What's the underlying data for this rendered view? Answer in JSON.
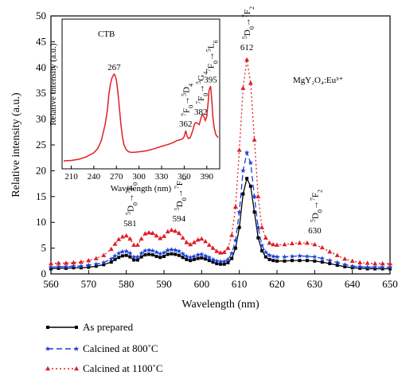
{
  "chart_data": {
    "type": "line",
    "xlabel": "Wavelength (nm)",
    "ylabel": "Relative intensity (a.u.)",
    "xlim": [
      560,
      650
    ],
    "ylim": [
      0,
      50
    ],
    "xticks": [
      "560",
      "570",
      "580",
      "590",
      "600",
      "610",
      "620",
      "630",
      "640",
      "650"
    ],
    "yticks": [
      "0",
      "5",
      "10",
      "15",
      "20",
      "25",
      "30",
      "35",
      "40",
      "45",
      "50"
    ],
    "x": [
      558,
      560,
      562,
      564,
      566,
      568,
      570,
      572,
      574,
      576,
      577,
      578,
      579,
      580,
      581,
      582,
      583,
      584,
      585,
      586,
      587,
      588,
      589,
      590,
      591,
      592,
      593,
      594,
      595,
      596,
      597,
      598,
      599,
      600,
      601,
      602,
      603,
      604,
      605,
      606,
      607,
      608,
      609,
      610,
      611,
      612,
      613,
      614,
      615,
      616,
      617,
      618,
      619,
      620,
      622,
      624,
      626,
      628,
      630,
      632,
      634,
      636,
      638,
      640,
      642,
      644,
      646,
      648,
      650
    ],
    "series": [
      {
        "name": "As prepared",
        "color": "#000000",
        "marker": "square",
        "values": [
          1,
          1,
          1.1,
          1.1,
          1.2,
          1.2,
          1.3,
          1.5,
          1.8,
          2.3,
          2.8,
          3.2,
          3.5,
          3.6,
          3.3,
          2.7,
          2.7,
          3.3,
          3.7,
          3.8,
          3.7,
          3.4,
          3.2,
          3.4,
          3.8,
          3.9,
          3.8,
          3.6,
          3.2,
          2.8,
          2.6,
          2.8,
          3,
          3.1,
          2.9,
          2.6,
          2.3,
          2,
          1.9,
          1.9,
          2.2,
          3,
          5,
          9,
          15.5,
          18.5,
          17,
          12,
          7,
          4.5,
          3.3,
          2.8,
          2.6,
          2.5,
          2.5,
          2.6,
          2.6,
          2.6,
          2.5,
          2.3,
          2,
          1.7,
          1.4,
          1.2,
          1.1,
          1,
          1,
          1,
          1
        ]
      },
      {
        "name": "Calcined at 800˚C",
        "color": "#1a3fd6",
        "marker": "star",
        "values": [
          1.3,
          1.3,
          1.4,
          1.4,
          1.5,
          1.5,
          1.7,
          1.9,
          2.2,
          2.9,
          3.5,
          4,
          4.3,
          4.4,
          4,
          3.3,
          3.3,
          4,
          4.5,
          4.6,
          4.5,
          4.2,
          3.9,
          4.1,
          4.6,
          4.7,
          4.6,
          4.4,
          3.9,
          3.4,
          3.2,
          3.4,
          3.7,
          3.8,
          3.5,
          3.2,
          2.8,
          2.5,
          2.4,
          2.4,
          2.8,
          4,
          6.5,
          12,
          20,
          23.5,
          21.5,
          15,
          9,
          5.5,
          4.2,
          3.6,
          3.4,
          3.3,
          3.3,
          3.4,
          3.5,
          3.4,
          3.3,
          3,
          2.6,
          2.2,
          1.8,
          1.5,
          1.4,
          1.3,
          1.3,
          1.3,
          1.3
        ]
      },
      {
        "name": "Calcined at 1100˚C",
        "color": "#e01f26",
        "marker": "triangle",
        "values": [
          2,
          2,
          2.1,
          2.1,
          2.2,
          2.3,
          2.6,
          3,
          3.6,
          4.8,
          5.8,
          6.7,
          7.2,
          7.4,
          6.8,
          5.6,
          5.6,
          6.8,
          7.8,
          8,
          7.9,
          7.4,
          6.9,
          7.3,
          8.2,
          8.5,
          8.3,
          7.9,
          7,
          6.1,
          5.7,
          6.1,
          6.6,
          6.8,
          6.3,
          5.6,
          5,
          4.4,
          4.1,
          4.2,
          5,
          7.5,
          13,
          24,
          36,
          41.5,
          37,
          26,
          15,
          9,
          7,
          6,
          5.7,
          5.6,
          5.7,
          5.9,
          6,
          6,
          5.7,
          5.1,
          4.3,
          3.6,
          2.9,
          2.5,
          2.2,
          2.1,
          2,
          2,
          2
        ]
      }
    ],
    "peak_labels": [
      {
        "transition": "⁵D₀→⁷F₀",
        "value": "581",
        "x": 581,
        "y": 7.4
      },
      {
        "transition": "⁵D₀→⁷F₁",
        "value": "594",
        "x": 594,
        "y": 8.3
      },
      {
        "transition": "⁵D₀→⁷F₂",
        "value": "612",
        "x": 612,
        "y": 41.5
      },
      {
        "transition": "⁵D₀→⁷F₂",
        "value": "630",
        "x": 630,
        "y": 6.0
      }
    ],
    "sample_label": "MgY₂O₄:Eu³⁺",
    "inset": {
      "type": "line",
      "color": "#e01f26",
      "xlabel": "Wavelength (nm)",
      "ylabel": "Relative intensity (a.u.)",
      "xlim": [
        200,
        405
      ],
      "ylim": [
        0,
        60
      ],
      "xticks": [
        "210",
        "240",
        "270",
        "300",
        "330",
        "360",
        "390"
      ],
      "title": "CTB",
      "x": [
        200,
        210,
        220,
        230,
        240,
        245,
        250,
        255,
        258,
        260,
        262,
        264,
        266,
        267,
        268,
        270,
        272,
        274,
        276,
        278,
        280,
        283,
        286,
        290,
        295,
        300,
        310,
        320,
        330,
        340,
        345,
        350,
        355,
        358,
        360,
        362,
        364,
        366,
        368,
        370,
        372,
        374,
        376,
        378,
        380,
        382,
        384,
        386,
        388,
        390,
        392,
        393,
        394,
        395,
        396,
        397,
        398,
        400,
        402,
        405
      ],
      "y": [
        0,
        0.2,
        0.8,
        2,
        4,
        6,
        10,
        18,
        25,
        33,
        38,
        41,
        42.5,
        43,
        42.5,
        40,
        34,
        26,
        18,
        12,
        8,
        5.5,
        4.5,
        4.2,
        4.3,
        4.5,
        5,
        6,
        7.2,
        8.3,
        9,
        10,
        10.5,
        11,
        12,
        15,
        12,
        11,
        11.5,
        13.5,
        16,
        18.5,
        19,
        18.5,
        18,
        21,
        23,
        22,
        20,
        22,
        30,
        35,
        36,
        37,
        33,
        28,
        22,
        16,
        13,
        11.5
      ],
      "peaks": [
        {
          "value": "267",
          "x": 267,
          "y": 43
        },
        {
          "value": "362",
          "x": 362,
          "y": 15,
          "transition": "⁷F₀→⁵D₄"
        },
        {
          "value": "382",
          "x": 382,
          "y": 21,
          "transition": "⁷F₀→⁵G₄"
        },
        {
          "value": "395",
          "x": 395,
          "y": 37,
          "transition": "⁷F₀→⁵L₆"
        }
      ]
    }
  }
}
